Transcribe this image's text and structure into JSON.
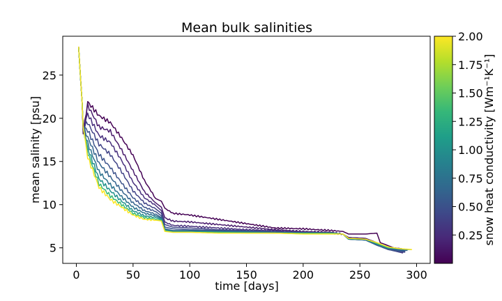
{
  "chart_data": {
    "type": "line",
    "title": "Mean bulk salinities",
    "xlabel": "time [days]",
    "ylabel": "mean salinity [psu]",
    "xlim": [
      -12,
      312
    ],
    "ylim": [
      3.2,
      29.5
    ],
    "xticks": [
      0,
      50,
      100,
      150,
      200,
      250,
      300
    ],
    "yticks": [
      5,
      10,
      15,
      20,
      25
    ],
    "grid": false,
    "colorbar": {
      "label": "snow heat conductivity [Wm⁻¹K⁻¹]",
      "range": [
        0.0,
        2.0
      ],
      "ticks": [
        "0.25",
        "0.50",
        "0.75",
        "1.00",
        "1.25",
        "1.50",
        "1.75",
        "2.00"
      ],
      "colormap": "viridis",
      "stops": [
        "#440154",
        "#482878",
        "#3e4989",
        "#31688e",
        "#26828e",
        "#1f9e89",
        "#35b779",
        "#6ece58",
        "#b5de2b",
        "#fde725"
      ]
    },
    "series": [
      {
        "k": 0.01,
        "color": "#440154",
        "values": [
          [
            2,
            28.3
          ],
          [
            4,
            24.0
          ],
          [
            5,
            22.0
          ],
          [
            6,
            18.2
          ],
          [
            10,
            21.9
          ],
          [
            20,
            20.3
          ],
          [
            30,
            19.5
          ],
          [
            40,
            17.7
          ],
          [
            50,
            15.7
          ],
          [
            60,
            12.8
          ],
          [
            70,
            10.7
          ],
          [
            75,
            10.4
          ],
          [
            78,
            9.6
          ],
          [
            85,
            9.0
          ],
          [
            100,
            8.8
          ],
          [
            125,
            8.3
          ],
          [
            150,
            7.8
          ],
          [
            175,
            7.3
          ],
          [
            200,
            7.2
          ],
          [
            225,
            7.0
          ],
          [
            235,
            6.9
          ],
          [
            240,
            6.6
          ],
          [
            255,
            6.6
          ],
          [
            265,
            6.7
          ],
          [
            268,
            5.6
          ],
          [
            280,
            5.0
          ],
          [
            287,
            4.9
          ]
        ]
      },
      {
        "k": 0.1,
        "color": "#481a6c",
        "values": [
          [
            2,
            28.2
          ],
          [
            4,
            24.0
          ],
          [
            5,
            22.0
          ],
          [
            6,
            18.5
          ],
          [
            10,
            21.5
          ],
          [
            20,
            19.0
          ],
          [
            30,
            18.5
          ],
          [
            40,
            16.3
          ],
          [
            50,
            13.9
          ],
          [
            60,
            11.5
          ],
          [
            70,
            10.2
          ],
          [
            75,
            9.7
          ],
          [
            78,
            8.5
          ],
          [
            85,
            8.1
          ],
          [
            100,
            8.0
          ],
          [
            125,
            7.7
          ],
          [
            150,
            7.4
          ],
          [
            175,
            7.1
          ],
          [
            200,
            6.9
          ],
          [
            225,
            6.8
          ],
          [
            235,
            6.6
          ],
          [
            240,
            6.2
          ],
          [
            255,
            6.1
          ],
          [
            265,
            5.6
          ],
          [
            275,
            5.0
          ],
          [
            285,
            4.7
          ],
          [
            290,
            4.6
          ]
        ]
      },
      {
        "k": 0.2,
        "color": "#472f7d",
        "values": [
          [
            2,
            28.2
          ],
          [
            4,
            24.0
          ],
          [
            5,
            22.0
          ],
          [
            6,
            18.8
          ],
          [
            10,
            20.5
          ],
          [
            20,
            18.0
          ],
          [
            30,
            17.2
          ],
          [
            40,
            15.1
          ],
          [
            50,
            12.6
          ],
          [
            60,
            10.8
          ],
          [
            70,
            9.9
          ],
          [
            75,
            9.3
          ],
          [
            78,
            8.0
          ],
          [
            85,
            7.6
          ],
          [
            100,
            7.5
          ],
          [
            125,
            7.3
          ],
          [
            150,
            7.1
          ],
          [
            175,
            7.0
          ],
          [
            200,
            6.8
          ],
          [
            225,
            6.7
          ],
          [
            235,
            6.6
          ],
          [
            240,
            6.1
          ],
          [
            255,
            6.0
          ],
          [
            265,
            5.5
          ],
          [
            275,
            4.9
          ],
          [
            285,
            4.5
          ],
          [
            288,
            4.4
          ]
        ]
      },
      {
        "k": 0.3,
        "color": "#414487",
        "values": [
          [
            2,
            28.2
          ],
          [
            4,
            24.0
          ],
          [
            5,
            22.0
          ],
          [
            6,
            19.0
          ],
          [
            10,
            19.5
          ],
          [
            20,
            17.0
          ],
          [
            30,
            15.8
          ],
          [
            40,
            13.8
          ],
          [
            50,
            11.6
          ],
          [
            60,
            10.2
          ],
          [
            70,
            9.5
          ],
          [
            75,
            9.0
          ],
          [
            78,
            7.7
          ],
          [
            85,
            7.4
          ],
          [
            100,
            7.3
          ],
          [
            125,
            7.1
          ],
          [
            150,
            7.0
          ],
          [
            175,
            6.9
          ],
          [
            200,
            6.8
          ],
          [
            225,
            6.7
          ],
          [
            235,
            6.6
          ],
          [
            240,
            6.0
          ],
          [
            255,
            5.9
          ],
          [
            265,
            5.4
          ],
          [
            275,
            4.8
          ],
          [
            285,
            4.5
          ],
          [
            290,
            4.5
          ]
        ]
      },
      {
        "k": 0.45,
        "color": "#3b528b",
        "values": [
          [
            2,
            28.2
          ],
          [
            4,
            24.0
          ],
          [
            5,
            22.0
          ],
          [
            6,
            19.0
          ],
          [
            10,
            18.6
          ],
          [
            20,
            15.8
          ],
          [
            30,
            14.3
          ],
          [
            40,
            12.5
          ],
          [
            50,
            10.8
          ],
          [
            60,
            9.7
          ],
          [
            70,
            9.2
          ],
          [
            75,
            8.7
          ],
          [
            78,
            7.4
          ],
          [
            85,
            7.2
          ],
          [
            100,
            7.1
          ],
          [
            125,
            7.0
          ],
          [
            150,
            6.9
          ],
          [
            175,
            6.8
          ],
          [
            200,
            6.7
          ],
          [
            225,
            6.7
          ],
          [
            235,
            6.6
          ],
          [
            240,
            6.0
          ],
          [
            255,
            5.9
          ],
          [
            265,
            5.3
          ],
          [
            275,
            4.8
          ],
          [
            285,
            4.6
          ],
          [
            290,
            4.6
          ]
        ]
      },
      {
        "k": 0.6,
        "color": "#33638d",
        "values": [
          [
            2,
            28.2
          ],
          [
            4,
            24.0
          ],
          [
            5,
            22.0
          ],
          [
            6,
            19.0
          ],
          [
            10,
            17.8
          ],
          [
            20,
            14.8
          ],
          [
            30,
            13.2
          ],
          [
            40,
            11.6
          ],
          [
            50,
            10.2
          ],
          [
            60,
            9.3
          ],
          [
            70,
            8.9
          ],
          [
            75,
            8.5
          ],
          [
            78,
            7.2
          ],
          [
            85,
            7.0
          ],
          [
            100,
            7.0
          ],
          [
            125,
            6.9
          ],
          [
            150,
            6.9
          ],
          [
            175,
            6.8
          ],
          [
            200,
            6.7
          ],
          [
            225,
            6.7
          ],
          [
            235,
            6.6
          ],
          [
            240,
            6.0
          ],
          [
            255,
            5.9
          ],
          [
            265,
            5.3
          ],
          [
            275,
            4.9
          ],
          [
            285,
            4.7
          ],
          [
            292,
            4.7
          ]
        ]
      },
      {
        "k": 0.85,
        "color": "#2c728e",
        "values": [
          [
            2,
            28.2
          ],
          [
            4,
            24.0
          ],
          [
            5,
            22.0
          ],
          [
            6,
            19.0
          ],
          [
            10,
            17.1
          ],
          [
            20,
            13.8
          ],
          [
            30,
            12.3
          ],
          [
            40,
            10.9
          ],
          [
            50,
            9.7
          ],
          [
            60,
            9.0
          ],
          [
            70,
            8.7
          ],
          [
            75,
            8.4
          ],
          [
            78,
            7.1
          ],
          [
            85,
            6.9
          ],
          [
            100,
            6.9
          ],
          [
            125,
            6.9
          ],
          [
            150,
            6.8
          ],
          [
            175,
            6.8
          ],
          [
            200,
            6.7
          ],
          [
            225,
            6.7
          ],
          [
            235,
            6.6
          ],
          [
            240,
            6.0
          ],
          [
            255,
            5.9
          ],
          [
            265,
            5.4
          ],
          [
            275,
            5.0
          ],
          [
            285,
            4.8
          ],
          [
            292,
            4.8
          ]
        ]
      },
      {
        "k": 1.1,
        "color": "#21918c",
        "values": [
          [
            2,
            28.2
          ],
          [
            4,
            24.0
          ],
          [
            5,
            22.0
          ],
          [
            6,
            19.0
          ],
          [
            10,
            16.5
          ],
          [
            20,
            13.0
          ],
          [
            30,
            11.6
          ],
          [
            40,
            10.4
          ],
          [
            50,
            9.3
          ],
          [
            60,
            8.7
          ],
          [
            70,
            8.5
          ],
          [
            75,
            8.3
          ],
          [
            78,
            7.0
          ],
          [
            85,
            6.9
          ],
          [
            100,
            6.9
          ],
          [
            125,
            6.8
          ],
          [
            150,
            6.8
          ],
          [
            175,
            6.7
          ],
          [
            200,
            6.7
          ],
          [
            225,
            6.7
          ],
          [
            235,
            6.6
          ],
          [
            240,
            6.0
          ],
          [
            255,
            6.0
          ],
          [
            265,
            5.5
          ],
          [
            275,
            5.0
          ],
          [
            285,
            4.9
          ],
          [
            293,
            4.8
          ]
        ]
      },
      {
        "k": 1.5,
        "color": "#3bbb75",
        "values": [
          [
            2,
            28.2
          ],
          [
            4,
            24.0
          ],
          [
            5,
            22.0
          ],
          [
            6,
            19.0
          ],
          [
            10,
            16.0
          ],
          [
            20,
            12.4
          ],
          [
            30,
            11.0
          ],
          [
            40,
            10.0
          ],
          [
            50,
            9.0
          ],
          [
            60,
            8.5
          ],
          [
            70,
            8.3
          ],
          [
            75,
            8.2
          ],
          [
            78,
            7.0
          ],
          [
            85,
            6.8
          ],
          [
            100,
            6.8
          ],
          [
            125,
            6.8
          ],
          [
            150,
            6.7
          ],
          [
            175,
            6.7
          ],
          [
            200,
            6.7
          ],
          [
            225,
            6.7
          ],
          [
            235,
            6.6
          ],
          [
            240,
            6.1
          ],
          [
            255,
            6.0
          ],
          [
            265,
            5.5
          ],
          [
            275,
            5.0
          ],
          [
            285,
            4.9
          ],
          [
            295,
            4.8
          ]
        ]
      },
      {
        "k": 2.0,
        "color": "#fde725",
        "values": [
          [
            2,
            28.3
          ],
          [
            4,
            24.0
          ],
          [
            5,
            22.0
          ],
          [
            6,
            19.0
          ],
          [
            10,
            15.5
          ],
          [
            20,
            12.0
          ],
          [
            30,
            10.6
          ],
          [
            40,
            9.7
          ],
          [
            50,
            8.8
          ],
          [
            60,
            8.3
          ],
          [
            70,
            8.2
          ],
          [
            75,
            8.1
          ],
          [
            78,
            6.9
          ],
          [
            85,
            6.8
          ],
          [
            100,
            6.8
          ],
          [
            125,
            6.7
          ],
          [
            150,
            6.7
          ],
          [
            175,
            6.7
          ],
          [
            200,
            6.6
          ],
          [
            225,
            6.6
          ],
          [
            235,
            6.6
          ],
          [
            240,
            6.1
          ],
          [
            255,
            6.0
          ],
          [
            265,
            5.6
          ],
          [
            275,
            5.1
          ],
          [
            285,
            4.9
          ],
          [
            296,
            4.8
          ]
        ]
      }
    ]
  }
}
